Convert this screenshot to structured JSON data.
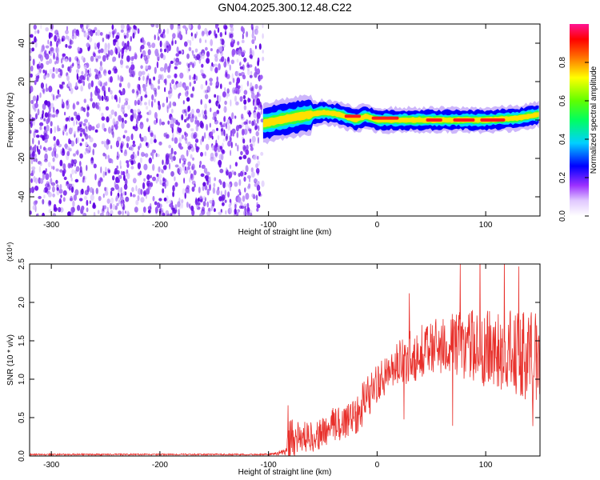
{
  "title": "GN04.2025.300.12.48.C22",
  "chart_data": [
    {
      "type": "heatmap",
      "name": "spectrogram",
      "xlabel": "Height of straight line (km)",
      "ylabel": "Frequency (Hz)",
      "xlim": [
        -320,
        150
      ],
      "ylim": [
        -50,
        50
      ],
      "xticks": [
        -300,
        -200,
        -100,
        0,
        100
      ],
      "xtick_labels": [
        "-300",
        "-200",
        "-100",
        "0",
        "100"
      ],
      "yticks": [
        -40,
        -20,
        0,
        20,
        40
      ],
      "ytick_labels": [
        "-40",
        "-20",
        "0",
        "20",
        "40"
      ],
      "noise_region_x": [
        -320,
        -105
      ],
      "signal_band": {
        "x_start": -105,
        "x_end": 150,
        "center_freq_points": [
          [
            -105,
            -2
          ],
          [
            -90,
            0
          ],
          [
            -70,
            2
          ],
          [
            -50,
            4
          ],
          [
            -35,
            3
          ],
          [
            -20,
            0
          ],
          [
            -10,
            2
          ],
          [
            0,
            0
          ],
          [
            40,
            0
          ],
          [
            100,
            0
          ],
          [
            130,
            1
          ],
          [
            150,
            3
          ]
        ]
      },
      "colorbar": {
        "label": "Normalized spectral amplitude",
        "range": [
          0,
          1
        ],
        "ticks": [
          0.0,
          0.2,
          0.4,
          0.6,
          0.8
        ],
        "tick_labels": [
          "0.0",
          "0.2",
          "0.4",
          "0.6",
          "0.8"
        ],
        "colors": [
          "#ffffff",
          "#d9b3ff",
          "#8a2be2",
          "#5a00ff",
          "#0000ff",
          "#00c8ff",
          "#00ff00",
          "#ffff00",
          "#ff8000",
          "#ff0000",
          "#ff1493"
        ]
      }
    },
    {
      "type": "line",
      "name": "snr",
      "xlabel": "Height of straight line (km)",
      "ylabel": "SNR (10 * v/v)",
      "multiplier": "(x10⁴)",
      "xlim": [
        -320,
        150
      ],
      "ylim": [
        0,
        2.5
      ],
      "xticks": [
        -300,
        -200,
        -100,
        0,
        100
      ],
      "xtick_labels": [
        "-300",
        "-200",
        "-100",
        "0",
        "100"
      ],
      "yticks": [
        0.0,
        0.5,
        1.0,
        1.5,
        2.0,
        2.5
      ],
      "ytick_labels": [
        "0.0",
        "0.5",
        "1.0",
        "1.5",
        "2.0",
        "2.5"
      ],
      "color": "#e8302b",
      "envelope": {
        "x": [
          -320,
          -100,
          -85,
          -80,
          -70,
          -60,
          -50,
          -40,
          -30,
          -20,
          -10,
          0,
          10,
          20,
          30,
          40,
          60,
          80,
          100,
          120,
          140,
          150
        ],
        "mean": [
          0.02,
          0.02,
          0.05,
          0.25,
          0.25,
          0.25,
          0.3,
          0.4,
          0.45,
          0.55,
          0.75,
          0.95,
          1.05,
          1.2,
          1.3,
          1.35,
          1.45,
          1.45,
          1.4,
          1.35,
          1.3,
          1.3
        ],
        "amplitude": [
          0.01,
          0.01,
          0.04,
          0.3,
          0.2,
          0.2,
          0.2,
          0.25,
          0.25,
          0.3,
          0.3,
          0.25,
          0.25,
          0.3,
          0.35,
          0.35,
          0.4,
          0.45,
          0.5,
          0.55,
          0.6,
          0.6
        ]
      }
    }
  ]
}
